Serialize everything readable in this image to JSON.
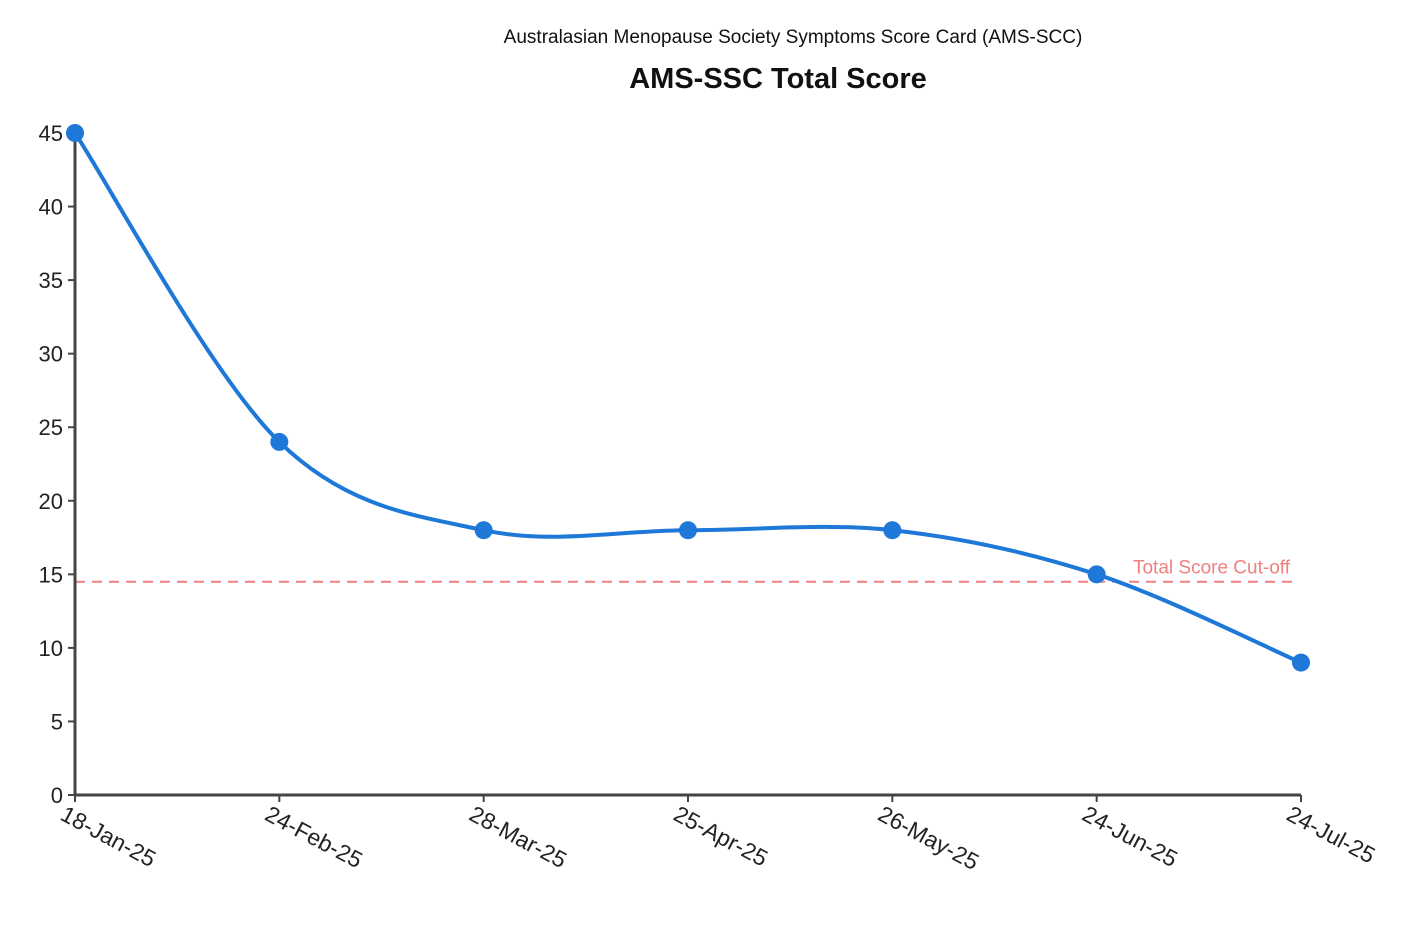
{
  "chart_data": {
    "type": "line",
    "subtitle": "Australasian Menopause Society Symptoms Score Card (AMS-SCC)",
    "title": "AMS-SSC Total Score",
    "xlabel": "",
    "ylabel": "",
    "categories": [
      "18-Jan-25",
      "24-Feb-25",
      "28-Mar-25",
      "25-Apr-25",
      "26-May-25",
      "24-Jun-25",
      "24-Jul-25"
    ],
    "series": [
      {
        "name": "AMS-SSC Total Score",
        "values": [
          45,
          24,
          18,
          18,
          18,
          15,
          9
        ],
        "color": "#1e78d8"
      }
    ],
    "ylim": [
      0,
      45
    ],
    "yticks": [
      0,
      5,
      10,
      15,
      20,
      25,
      30,
      35,
      40,
      45
    ],
    "grid": false,
    "reference_line": {
      "label": "Total Score Cut-off",
      "value": 14.5,
      "color": "#f08080"
    },
    "axis_color": "#444444"
  }
}
